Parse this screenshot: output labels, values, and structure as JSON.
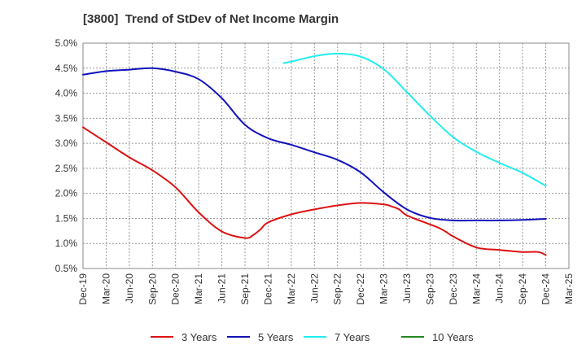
{
  "chart_data": {
    "type": "line",
    "title": "[3800]  Trend of StDev of Net Income Margin",
    "xlabel": "",
    "ylabel": "",
    "x_ticks": [
      "Dec-19",
      "Mar-20",
      "Jun-20",
      "Sep-20",
      "Dec-20",
      "Mar-21",
      "Jun-21",
      "Sep-21",
      "Dec-21",
      "Mar-22",
      "Jun-22",
      "Sep-22",
      "Dec-22",
      "Mar-23",
      "Jun-23",
      "Sep-23",
      "Dec-23",
      "Mar-24",
      "Jun-24",
      "Sep-24",
      "Dec-24",
      "Mar-25"
    ],
    "y_ticks": [
      "5.0%",
      "4.5%",
      "4.0%",
      "3.5%",
      "3.0%",
      "2.5%",
      "2.0%",
      "1.5%",
      "1.0%",
      "0.5%"
    ],
    "ylim": [
      0.5,
      5.0
    ],
    "grid": true,
    "legend_position": "bottom",
    "series": [
      {
        "name": "3 Years",
        "color": "#dd1111",
        "points": [
          [
            "Dec-19",
            3.32
          ],
          [
            "Mar-20",
            3.02
          ],
          [
            "Jun-20",
            2.72
          ],
          [
            "Sep-20",
            2.46
          ],
          [
            "Dec-20",
            2.12
          ],
          [
            "Mar-21",
            1.62
          ],
          [
            "Jun-21",
            1.24
          ],
          [
            "Sep-21",
            1.11
          ],
          [
            "Oct-21",
            1.16
          ],
          [
            "Nov-21",
            1.28
          ],
          [
            "Dec-21",
            1.42
          ],
          [
            "Mar-22",
            1.58
          ],
          [
            "Jun-22",
            1.68
          ],
          [
            "Sep-22",
            1.76
          ],
          [
            "Dec-22",
            1.81
          ],
          [
            "Mar-23",
            1.78
          ],
          [
            "Apr-23",
            1.74
          ],
          [
            "May-23",
            1.68
          ],
          [
            "Jun-23",
            1.56
          ],
          [
            "Sep-23",
            1.38
          ],
          [
            "Oct-23",
            1.32
          ],
          [
            "Nov-23",
            1.24
          ],
          [
            "Dec-23",
            1.14
          ],
          [
            "Mar-24",
            0.92
          ],
          [
            "Jun-24",
            0.87
          ],
          [
            "Sep-24",
            0.83
          ],
          [
            "Nov-24",
            0.83
          ],
          [
            "Dec-24",
            0.77
          ]
        ]
      },
      {
        "name": "5 Years",
        "color": "#1111bb",
        "points": [
          [
            "Dec-19",
            4.37
          ],
          [
            "Mar-20",
            4.44
          ],
          [
            "Jun-20",
            4.47
          ],
          [
            "Sep-20",
            4.5
          ],
          [
            "Dec-20",
            4.43
          ],
          [
            "Mar-21",
            4.28
          ],
          [
            "Jun-21",
            3.9
          ],
          [
            "Sep-21",
            3.37
          ],
          [
            "Dec-21",
            3.1
          ],
          [
            "Mar-22",
            2.97
          ],
          [
            "Jun-22",
            2.82
          ],
          [
            "Sep-22",
            2.67
          ],
          [
            "Dec-22",
            2.42
          ],
          [
            "Mar-23",
            2.02
          ],
          [
            "Jun-23",
            1.68
          ],
          [
            "Sep-23",
            1.51
          ],
          [
            "Dec-23",
            1.46
          ],
          [
            "Mar-24",
            1.46
          ],
          [
            "Jun-24",
            1.46
          ],
          [
            "Sep-24",
            1.47
          ],
          [
            "Dec-24",
            1.49
          ]
        ]
      },
      {
        "name": "7 Years",
        "color": "#22eeee",
        "points": [
          [
            "Feb-22",
            4.6
          ],
          [
            "Mar-22",
            4.63
          ],
          [
            "Jun-22",
            4.74
          ],
          [
            "Sep-22",
            4.79
          ],
          [
            "Dec-22",
            4.73
          ],
          [
            "Mar-23",
            4.48
          ],
          [
            "Jun-23",
            4.02
          ],
          [
            "Sep-23",
            3.55
          ],
          [
            "Dec-23",
            3.12
          ],
          [
            "Mar-24",
            2.83
          ],
          [
            "Jun-24",
            2.61
          ],
          [
            "Sep-24",
            2.41
          ],
          [
            "Dec-24",
            2.15
          ]
        ]
      },
      {
        "name": "10 Years",
        "color": "#228822",
        "points": []
      }
    ]
  }
}
